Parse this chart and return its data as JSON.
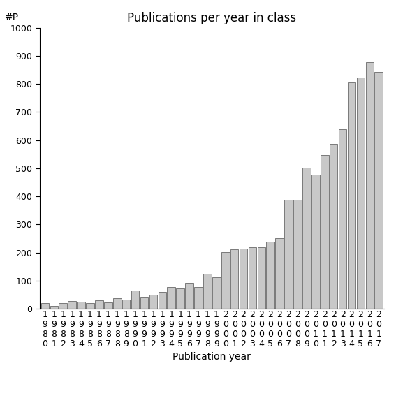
{
  "title": "Publications per year in class",
  "xlabel": "Publication year",
  "ylabel": "#P",
  "years": [
    1980,
    1981,
    1982,
    1983,
    1984,
    1985,
    1986,
    1987,
    1988,
    1989,
    1990,
    1991,
    1992,
    1993,
    1994,
    1995,
    1996,
    1997,
    1998,
    1999,
    2000,
    2001,
    2002,
    2003,
    2004,
    2005,
    2006,
    2007,
    2008,
    2009,
    2010,
    2011,
    2012,
    2013,
    2014,
    2015,
    2016,
    2017
  ],
  "values": [
    20,
    10,
    20,
    28,
    25,
    20,
    30,
    22,
    38,
    32,
    65,
    42,
    50,
    60,
    78,
    72,
    93,
    78,
    125,
    112,
    202,
    212,
    215,
    218,
    218,
    238,
    252,
    388,
    388,
    502,
    478,
    548,
    588,
    638,
    805,
    823,
    878,
    843
  ],
  "bar_color": "#c8c8c8",
  "bar_edgecolor": "#505050",
  "ylim": [
    0,
    1000
  ],
  "yticks": [
    0,
    100,
    200,
    300,
    400,
    500,
    600,
    700,
    800,
    900,
    1000
  ],
  "background_color": "#ffffff",
  "title_fontsize": 12,
  "xlabel_fontsize": 10,
  "ylabel_fontsize": 10,
  "tick_fontsize": 9,
  "figsize": [
    5.67,
    5.67
  ],
  "dpi": 100
}
